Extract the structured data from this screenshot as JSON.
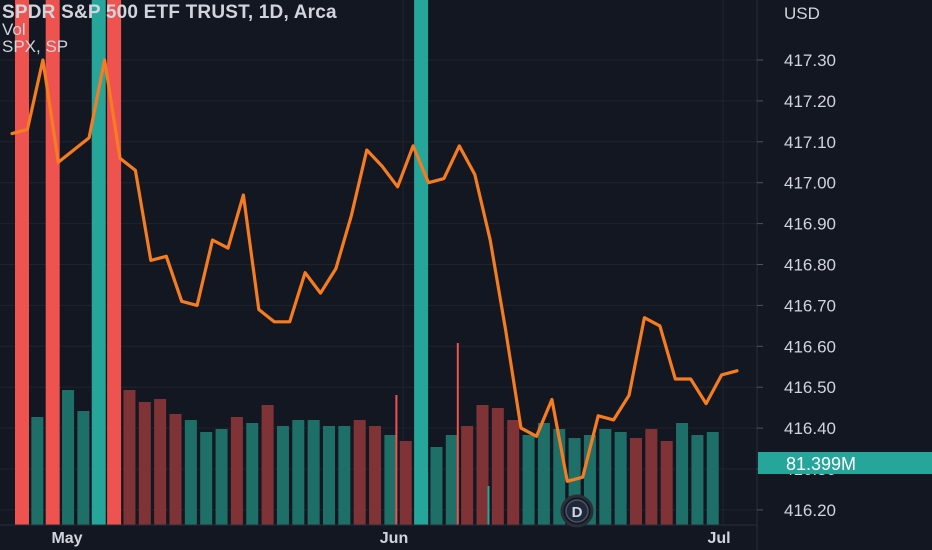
{
  "header": {
    "title": "SPDR S&P 500 ETF TRUST, 1D, Arca",
    "volume_label": "Vol",
    "compare_label": "SPX, SP"
  },
  "colors": {
    "background": "#131722",
    "grid": "#1f232e",
    "line": "#f57c20",
    "up": "#26a69a",
    "down": "#ef5350",
    "vol_up": "#1f6f69",
    "vol_down": "#7f3336",
    "text": "#d1d4dc",
    "badge": "#26a69a"
  },
  "chart_data": {
    "type": "line",
    "currency": "USD",
    "y_ticks": [
      "417.30",
      "417.20",
      "417.10",
      "417.00",
      "416.90",
      "416.80",
      "416.70",
      "416.60",
      "416.50",
      "416.40",
      "416.30",
      "416.20"
    ],
    "y_range": [
      416.17,
      417.42
    ],
    "x_ticks": [
      "May",
      "Jun",
      "Jul"
    ],
    "current_volume": "81.399M",
    "event_marker": "D",
    "series": [
      {
        "values": [
          417.12,
          417.13,
          417.3,
          417.05,
          417.08,
          417.11,
          417.3,
          417.06,
          417.03,
          416.81,
          416.82,
          416.71,
          416.7,
          416.86,
          416.84,
          416.97,
          416.69,
          416.66,
          416.66,
          416.78,
          416.73,
          416.79,
          416.92,
          417.08,
          417.04,
          416.99,
          417.09,
          417.0,
          417.01,
          417.09,
          417.02,
          416.86,
          416.64,
          416.4,
          416.38,
          416.47,
          416.27,
          416.28,
          416.43,
          416.42,
          416.48,
          416.67,
          416.65,
          416.52,
          416.52,
          416.46,
          416.53,
          416.54
        ]
      }
    ],
    "volume": [
      {
        "v": 38,
        "d": "up"
      },
      {
        "v": 36,
        "d": "up"
      },
      {
        "v": 34,
        "d": "down"
      },
      {
        "v": 45,
        "d": "up"
      },
      {
        "v": 38,
        "d": "up"
      },
      {
        "v": 43,
        "d": "up"
      },
      {
        "v": 45,
        "d": "down"
      },
      {
        "v": 45,
        "d": "down"
      },
      {
        "v": 41,
        "d": "down"
      },
      {
        "v": 42,
        "d": "down"
      },
      {
        "v": 37,
        "d": "down"
      },
      {
        "v": 35,
        "d": "up"
      },
      {
        "v": 31,
        "d": "up"
      },
      {
        "v": 32,
        "d": "up"
      },
      {
        "v": 36,
        "d": "down"
      },
      {
        "v": 34,
        "d": "up"
      },
      {
        "v": 40,
        "d": "down"
      },
      {
        "v": 33,
        "d": "up"
      },
      {
        "v": 35,
        "d": "up"
      },
      {
        "v": 35,
        "d": "up"
      },
      {
        "v": 33,
        "d": "up"
      },
      {
        "v": 33,
        "d": "up"
      },
      {
        "v": 35,
        "d": "down"
      },
      {
        "v": 33,
        "d": "down"
      },
      {
        "v": 30,
        "d": "up"
      },
      {
        "v": 28,
        "d": "down"
      },
      {
        "v": 25,
        "d": "down"
      },
      {
        "v": 26,
        "d": "up"
      },
      {
        "v": 30,
        "d": "up"
      },
      {
        "v": 33,
        "d": "down"
      },
      {
        "v": 40,
        "d": "down"
      },
      {
        "v": 39,
        "d": "down"
      },
      {
        "v": 35,
        "d": "down"
      },
      {
        "v": 30,
        "d": "up"
      },
      {
        "v": 34,
        "d": "up"
      },
      {
        "v": 32,
        "d": "up"
      },
      {
        "v": 29,
        "d": "up"
      },
      {
        "v": 30,
        "d": "up"
      },
      {
        "v": 32,
        "d": "up"
      },
      {
        "v": 31,
        "d": "up"
      },
      {
        "v": 29,
        "d": "down"
      },
      {
        "v": 32,
        "d": "down"
      },
      {
        "v": 28,
        "d": "down"
      },
      {
        "v": 34,
        "d": "up"
      },
      {
        "v": 30,
        "d": "up"
      },
      {
        "v": 31,
        "d": "up"
      }
    ],
    "highlight_bars": [
      {
        "index": 0,
        "d": "down"
      },
      {
        "index": 2,
        "d": "down"
      },
      {
        "index": 5,
        "d": "up"
      },
      {
        "index": 6,
        "d": "down"
      },
      {
        "index": 26,
        "d": "up"
      }
    ],
    "thin_spikes": [
      {
        "index": 24,
        "d": "down",
        "v": 100
      },
      {
        "index": 26,
        "d": "up",
        "v": 40
      },
      {
        "index": 28,
        "d": "down",
        "v": 140
      },
      {
        "index": 30,
        "d": "up",
        "v": 30
      }
    ]
  }
}
